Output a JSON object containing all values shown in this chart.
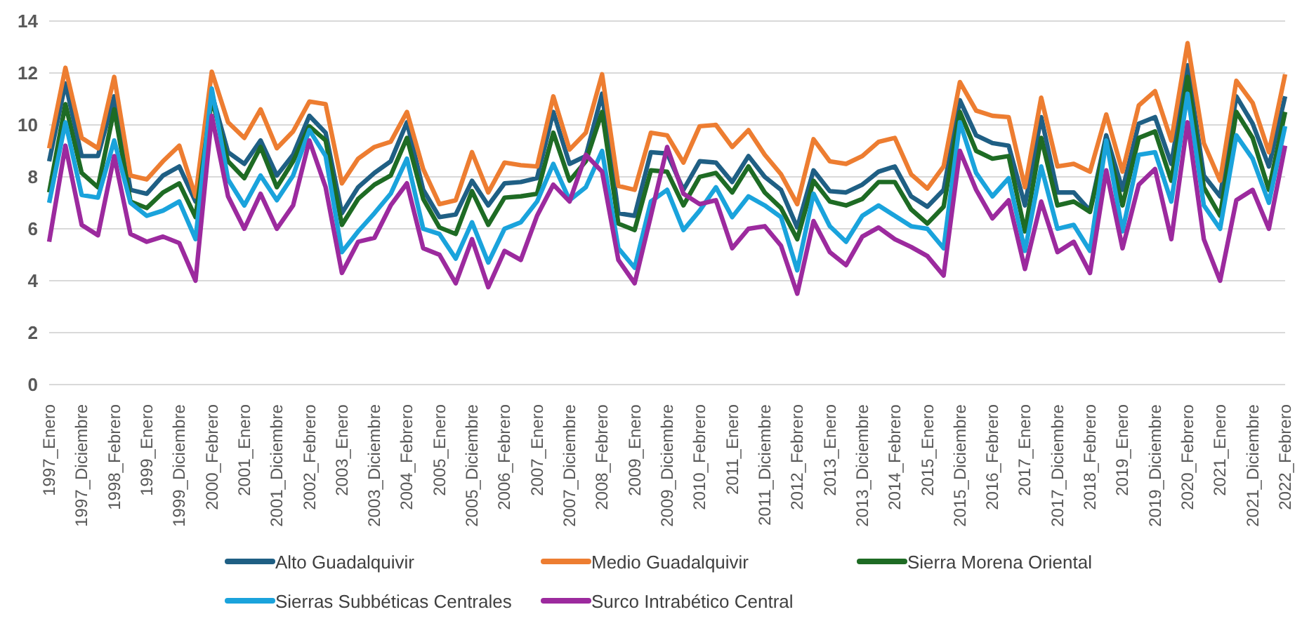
{
  "chart_data": {
    "type": "line",
    "categories": [
      "1997_Enero",
      null,
      "1997_Diciembre",
      null,
      "1998_Febrero",
      null,
      "1999_Enero",
      null,
      "1999_Diciembre",
      null,
      "2000_Febrero",
      null,
      "2001_Enero",
      null,
      "2001_Diciembre",
      null,
      "2002_Febrero",
      null,
      "2003_Enero",
      null,
      "2003_Diciembre",
      null,
      "2004_Febrero",
      null,
      "2005_Enero",
      null,
      "2005_Diciembre",
      null,
      "2006_Febrero",
      null,
      "2007_Enero",
      null,
      "2007_Diciembre",
      null,
      "2008_Febrero",
      null,
      "2009_Enero",
      null,
      "2009_Diciembre",
      null,
      "2010_Febrero",
      null,
      "2011_Enero",
      null,
      "2011_Diciembre",
      null,
      "2012_Febrero",
      null,
      "2013_Enero",
      null,
      "2013_Diciembre",
      null,
      "2014_Febrero",
      null,
      "2015_Enero",
      null,
      "2015_Diciembre",
      null,
      "2016_Febrero",
      null,
      "2017_Enero",
      null,
      "2017_Diciembre",
      null,
      "2018_Febrero",
      null,
      "2019_Enero",
      null,
      "2019_Diciembre",
      null,
      "2020_Febrero",
      null,
      "2021_Enero",
      null,
      "2021_Diciembre",
      null,
      "2022_Febrero"
    ],
    "series": [
      {
        "name": "Alto Guadalquivir",
        "color": "#1f5f84",
        "values": [
          8.6,
          11.6,
          8.8,
          8.8,
          11.1,
          7.5,
          7.35,
          8.05,
          8.4,
          7.05,
          11.2,
          8.95,
          8.5,
          9.4,
          8.05,
          8.85,
          10.35,
          9.7,
          6.6,
          7.6,
          8.15,
          8.6,
          10.1,
          7.5,
          6.45,
          6.55,
          7.85,
          6.9,
          7.75,
          7.8,
          7.95,
          10.5,
          8.5,
          8.8,
          11.2,
          6.6,
          6.5,
          8.95,
          8.9,
          7.5,
          8.6,
          8.55,
          7.8,
          8.8,
          8.0,
          7.5,
          6.05,
          8.25,
          7.45,
          7.4,
          7.7,
          8.2,
          8.4,
          7.25,
          6.85,
          7.5,
          10.95,
          9.6,
          9.3,
          9.2,
          6.9,
          10.3,
          7.4,
          7.4,
          6.7,
          9.6,
          7.5,
          10.05,
          10.3,
          8.5,
          12.3,
          8.05,
          7.25,
          11.1,
          10.05,
          8.4,
          11.1
        ]
      },
      {
        "name": "Medio Guadalquivir",
        "color": "#ed7d31",
        "values": [
          9.1,
          12.2,
          9.5,
          9.1,
          11.85,
          8.05,
          7.9,
          8.6,
          9.2,
          7.25,
          12.05,
          10.1,
          9.5,
          10.6,
          9.1,
          9.75,
          10.9,
          10.8,
          7.75,
          8.7,
          9.15,
          9.35,
          10.5,
          8.3,
          6.95,
          7.1,
          8.95,
          7.4,
          8.55,
          8.45,
          8.4,
          11.1,
          9.05,
          9.7,
          11.95,
          7.65,
          7.5,
          9.7,
          9.6,
          8.55,
          9.95,
          10.0,
          9.15,
          9.8,
          8.85,
          8.1,
          6.95,
          9.45,
          8.6,
          8.5,
          8.8,
          9.35,
          9.5,
          8.1,
          7.55,
          8.4,
          11.65,
          10.55,
          10.35,
          10.3,
          7.6,
          11.05,
          8.4,
          8.5,
          8.2,
          10.4,
          8.2,
          10.75,
          11.3,
          9.4,
          13.15,
          9.3,
          7.85,
          11.7,
          10.85,
          8.95,
          11.95
        ]
      },
      {
        "name": "Sierra Morena Oriental",
        "color": "#1e6b24",
        "values": [
          7.4,
          10.8,
          8.15,
          7.6,
          10.6,
          7.05,
          6.8,
          7.4,
          7.75,
          6.45,
          11.0,
          8.6,
          7.95,
          9.15,
          7.6,
          8.6,
          9.95,
          9.4,
          6.15,
          7.15,
          7.7,
          8.05,
          9.5,
          7.15,
          6.05,
          5.8,
          7.45,
          6.15,
          7.2,
          7.25,
          7.35,
          9.7,
          7.85,
          8.6,
          10.5,
          6.2,
          5.95,
          8.25,
          8.2,
          6.9,
          8.0,
          8.15,
          7.4,
          8.4,
          7.4,
          6.8,
          5.6,
          7.85,
          7.05,
          6.9,
          7.15,
          7.8,
          7.8,
          6.75,
          6.2,
          6.85,
          10.5,
          9.0,
          8.7,
          8.8,
          5.9,
          9.5,
          6.9,
          7.05,
          6.65,
          9.4,
          6.9,
          9.5,
          9.75,
          7.85,
          11.85,
          7.6,
          6.5,
          10.5,
          9.5,
          7.5,
          10.5
        ]
      },
      {
        "name": "Sierras Subbéticas Centrales",
        "color": "#1aa3dc",
        "values": [
          7.0,
          10.1,
          7.3,
          7.2,
          9.4,
          7.0,
          6.5,
          6.7,
          7.05,
          5.6,
          11.4,
          7.9,
          6.9,
          8.05,
          7.1,
          8.05,
          9.8,
          8.8,
          5.1,
          5.9,
          6.6,
          7.35,
          8.7,
          6.0,
          5.8,
          4.85,
          6.25,
          4.7,
          6.0,
          6.25,
          7.05,
          8.5,
          7.1,
          7.6,
          9.0,
          5.25,
          4.5,
          7.05,
          7.5,
          5.95,
          6.7,
          7.6,
          6.45,
          7.25,
          6.9,
          6.45,
          4.4,
          7.35,
          6.1,
          5.5,
          6.5,
          6.9,
          6.5,
          6.1,
          6.0,
          5.25,
          10.1,
          8.15,
          7.25,
          7.95,
          5.15,
          8.4,
          6.0,
          6.15,
          5.15,
          9.4,
          5.9,
          8.85,
          8.95,
          7.05,
          11.2,
          6.9,
          6.0,
          9.6,
          8.7,
          7.0,
          9.95
        ]
      },
      {
        "name": "Surco Intrabético Central",
        "color": "#9c2a9e",
        "values": [
          5.5,
          9.2,
          6.15,
          5.75,
          8.8,
          5.8,
          5.5,
          5.7,
          5.45,
          4.0,
          10.35,
          7.25,
          6.0,
          7.35,
          6.0,
          6.9,
          9.4,
          7.6,
          4.3,
          5.5,
          5.65,
          6.9,
          7.75,
          5.25,
          5.0,
          3.9,
          5.6,
          3.75,
          5.15,
          4.8,
          6.5,
          7.7,
          7.05,
          8.85,
          8.2,
          4.8,
          3.9,
          6.5,
          9.15,
          7.35,
          6.95,
          7.1,
          5.25,
          6.0,
          6.1,
          5.35,
          3.5,
          6.3,
          5.1,
          4.6,
          5.7,
          6.05,
          5.6,
          5.3,
          4.95,
          4.2,
          9.0,
          7.5,
          6.4,
          7.1,
          4.45,
          7.05,
          5.1,
          5.5,
          4.3,
          8.25,
          5.25,
          7.7,
          8.3,
          5.6,
          10.1,
          5.6,
          4.0,
          7.1,
          7.5,
          6.0,
          9.2
        ]
      }
    ],
    "ylim": [
      0,
      14
    ],
    "yticks": [
      0,
      2,
      4,
      6,
      8,
      10,
      12,
      14
    ],
    "grid": "y",
    "legend": "bottom",
    "marker": "none",
    "line_style": "solid"
  }
}
